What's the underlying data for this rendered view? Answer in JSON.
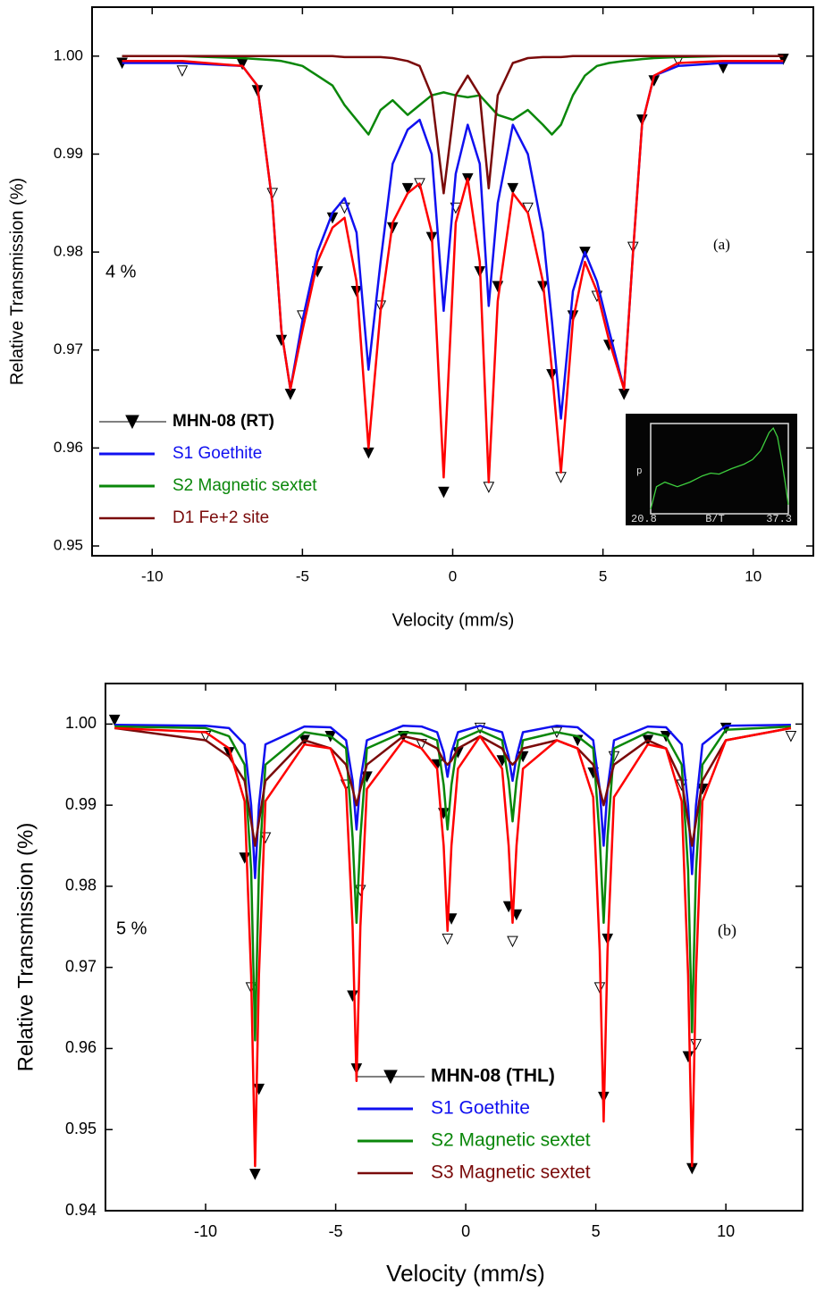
{
  "chart_data": [
    {
      "type": "line",
      "xlabel": "Velocity (mm/s)",
      "ylabel": "Relative Transmission (%)",
      "annotations": [
        "4 %",
        "(a)"
      ],
      "xlim": [
        -12,
        12
      ],
      "ylim": [
        0.949,
        1.005
      ],
      "xticks": [
        -10,
        -5,
        0,
        5,
        10
      ],
      "yticks": [
        0.95,
        0.96,
        0.97,
        0.98,
        0.99,
        {
          "value": 1,
          "label": "1.00"
        }
      ],
      "legend": "lower left",
      "x": [
        -11,
        -9,
        -7,
        -6.5,
        -6,
        -5.7,
        -5.4,
        -5,
        -4.5,
        -4,
        -3.6,
        -3.2,
        -2.8,
        -2.4,
        -2,
        -1.5,
        -1.1,
        -0.7,
        -0.3,
        0.1,
        0.5,
        0.9,
        1.2,
        1.5,
        2,
        2.5,
        3,
        3.3,
        3.6,
        4,
        4.4,
        4.8,
        5.2,
        5.7,
        6,
        6.3,
        6.7,
        7.5,
        9,
        11
      ],
      "series": [
        {
          "name": "MHN-08 (RT)",
          "kind": "scatter",
          "color": "#000000",
          "values": [
            0.9993,
            0.9985,
            0.9992,
            0.9965,
            0.986,
            0.971,
            0.9655,
            0.9735,
            0.978,
            0.9835,
            0.9845,
            0.976,
            0.9595,
            0.9745,
            0.9825,
            0.9865,
            0.987,
            0.9815,
            0.9555,
            0.9845,
            0.9875,
            0.978,
            0.956,
            0.9765,
            0.9865,
            0.9845,
            0.9765,
            0.9675,
            0.957,
            0.9735,
            0.98,
            0.9755,
            0.9705,
            0.9655,
            0.9805,
            0.9935,
            0.9975,
            0.9995,
            0.9988,
            0.9997
          ]
        },
        {
          "name": "S1 Goethite",
          "kind": "line",
          "color": "#1010f0",
          "values": [
            0.9993,
            0.9993,
            0.999,
            0.997,
            0.985,
            0.972,
            0.966,
            0.973,
            0.98,
            0.984,
            0.9855,
            0.982,
            0.968,
            0.979,
            0.989,
            0.9925,
            0.9935,
            0.99,
            0.974,
            0.988,
            0.993,
            0.989,
            0.9745,
            0.985,
            0.993,
            0.99,
            0.982,
            0.973,
            0.963,
            0.976,
            0.98,
            0.977,
            0.972,
            0.966,
            0.98,
            0.993,
            0.998,
            0.999,
            0.9993,
            0.9993
          ]
        },
        {
          "name": "S2 Magnetic sextet",
          "kind": "line",
          "color": "#0a870a",
          "values": [
            1,
            1,
            0.9998,
            0.9997,
            0.9996,
            0.9995,
            0.9993,
            0.999,
            0.998,
            0.997,
            0.995,
            0.9935,
            0.992,
            0.9945,
            0.9955,
            0.994,
            0.995,
            0.996,
            0.9963,
            0.996,
            0.9958,
            0.996,
            0.995,
            0.994,
            0.9935,
            0.9945,
            0.993,
            0.992,
            0.993,
            0.996,
            0.998,
            0.999,
            0.9993,
            0.9995,
            0.9996,
            0.9997,
            0.9998,
            0.9999,
            1,
            1
          ]
        },
        {
          "name": "D1  Fe+2 site",
          "kind": "line",
          "color": "#7a0a0a",
          "values": [
            1,
            1,
            1,
            1,
            1,
            1,
            1,
            1,
            1,
            1,
            0.9999,
            0.9999,
            0.9999,
            0.9999,
            0.9998,
            0.9995,
            0.999,
            0.996,
            0.986,
            0.996,
            0.998,
            0.996,
            0.9865,
            0.996,
            0.9993,
            0.9998,
            0.9999,
            0.9999,
            0.9999,
            1,
            1,
            1,
            1,
            1,
            1,
            1,
            1,
            1,
            1,
            1
          ]
        },
        {
          "kind": "line",
          "color": "#ff0000",
          "values": [
            0.9995,
            0.9995,
            0.999,
            0.997,
            0.985,
            0.972,
            0.966,
            0.972,
            0.979,
            0.9825,
            0.9835,
            0.977,
            0.96,
            0.974,
            0.983,
            0.986,
            0.987,
            0.982,
            0.957,
            0.983,
            0.9875,
            0.979,
            0.9565,
            0.975,
            0.986,
            0.984,
            0.977,
            0.968,
            0.9575,
            0.973,
            0.979,
            0.976,
            0.971,
            0.966,
            0.98,
            0.993,
            0.998,
            0.9993,
            0.9995,
            0.9995
          ]
        }
      ],
      "inset": {
        "xlabel": "B/T",
        "ylabel": "p",
        "xlim": [
          20.8,
          37.3
        ],
        "xticks": [
          20.8,
          37.3
        ],
        "ylim": [
          0,
          1
        ],
        "x": [
          20.8,
          21.5,
          22.5,
          24,
          25.5,
          27,
          28,
          29,
          30.5,
          32,
          33,
          34,
          35,
          35.5,
          36,
          36.5,
          37,
          37.3
        ],
        "values": [
          0.05,
          0.3,
          0.35,
          0.3,
          0.35,
          0.42,
          0.45,
          0.44,
          0.5,
          0.55,
          0.6,
          0.7,
          0.9,
          0.95,
          0.85,
          0.6,
          0.3,
          0.1
        ],
        "color": "#3ecf3e"
      }
    },
    {
      "type": "line",
      "xlabel": "Velocity (mm/s)",
      "ylabel": "Relative Transmission (%)",
      "annotations": [
        "5 %",
        "(b)"
      ],
      "xlim": [
        -13.85,
        12.95
      ],
      "ylim": [
        0.94,
        1.005
      ],
      "xticks": [
        -10,
        -5,
        0,
        5,
        10
      ],
      "yticks": [
        0.94,
        0.95,
        0.96,
        0.97,
        0.98,
        0.99,
        {
          "value": 1,
          "label": "1.00"
        }
      ],
      "legend": "lower center",
      "x": [
        -13.5,
        -10,
        -9.1,
        -8.5,
        -8.25,
        -8.1,
        -7.95,
        -7.7,
        -6.2,
        -5.2,
        -4.6,
        -4.35,
        -4.2,
        -4.05,
        -3.8,
        -2.4,
        -1.7,
        -1.1,
        -0.85,
        -0.7,
        -0.55,
        -0.3,
        0.55,
        1.4,
        1.65,
        1.8,
        1.95,
        2.2,
        3.5,
        4.3,
        4.9,
        5.15,
        5.3,
        5.45,
        5.7,
        7,
        7.7,
        8.3,
        8.55,
        8.7,
        8.85,
        9.1,
        10,
        12.5
      ],
      "series": [
        {
          "name": "MHN-08 (THL)",
          "kind": "scatter",
          "color": "#000000",
          "values": [
            1.0005,
            0.9985,
            0.9965,
            0.9835,
            0.9675,
            0.9445,
            0.955,
            0.986,
            0.998,
            0.9985,
            0.9925,
            0.9665,
            0.9575,
            0.9795,
            0.9935,
            0.9985,
            0.9975,
            0.995,
            0.989,
            0.9735,
            0.976,
            0.9965,
            0.9995,
            0.9955,
            0.9775,
            0.9732,
            0.9765,
            0.996,
            0.999,
            0.998,
            0.994,
            0.9675,
            0.954,
            0.9735,
            0.996,
            0.998,
            0.9985,
            0.9925,
            0.959,
            0.9452,
            0.9605,
            0.992,
            0.9995,
            0.9985
          ]
        },
        {
          "name": "S1 Goethite",
          "kind": "line",
          "color": "#1010f0",
          "values": [
            0.9999,
            0.9998,
            0.9995,
            0.9975,
            0.99,
            0.981,
            0.99,
            0.9975,
            0.9997,
            0.9996,
            0.998,
            0.993,
            0.987,
            0.993,
            0.998,
            0.9998,
            0.9997,
            0.999,
            0.9965,
            0.9935,
            0.9965,
            0.999,
            0.9998,
            0.999,
            0.996,
            0.993,
            0.996,
            0.999,
            0.9998,
            0.9996,
            0.998,
            0.992,
            0.985,
            0.992,
            0.998,
            0.9997,
            0.9996,
            0.9975,
            0.99,
            0.9815,
            0.99,
            0.9975,
            0.9998,
            0.9999
          ]
        },
        {
          "name": "S2 Magnetic sextet",
          "kind": "line",
          "color": "#0a870a",
          "values": [
            0.9997,
            0.9995,
            0.9985,
            0.995,
            0.982,
            0.961,
            0.982,
            0.995,
            0.999,
            0.9985,
            0.997,
            0.986,
            0.9755,
            0.986,
            0.997,
            0.999,
            0.9988,
            0.998,
            0.9925,
            0.987,
            0.9925,
            0.998,
            0.9992,
            0.998,
            0.993,
            0.988,
            0.993,
            0.998,
            0.999,
            0.9985,
            0.997,
            0.986,
            0.9755,
            0.986,
            0.997,
            0.999,
            0.9985,
            0.995,
            0.982,
            0.962,
            0.982,
            0.995,
            0.9993,
            0.9997
          ]
        },
        {
          "name": "S3 Magnetic sextet",
          "kind": "line",
          "color": "#7a0a0a",
          "values": [
            0.9995,
            0.998,
            0.996,
            0.993,
            0.988,
            0.985,
            0.988,
            0.993,
            0.998,
            0.997,
            0.995,
            0.992,
            0.99,
            0.992,
            0.995,
            0.9985,
            0.998,
            0.997,
            0.9955,
            0.995,
            0.9955,
            0.997,
            0.9985,
            0.997,
            0.9955,
            0.995,
            0.9955,
            0.997,
            0.998,
            0.997,
            0.995,
            0.992,
            0.99,
            0.992,
            0.995,
            0.998,
            0.997,
            0.993,
            0.988,
            0.985,
            0.988,
            0.993,
            0.998,
            0.9995
          ]
        },
        {
          "kind": "line",
          "color": "#ff0000",
          "values": [
            0.9995,
            0.999,
            0.997,
            0.9905,
            0.969,
            0.9455,
            0.969,
            0.9905,
            0.9975,
            0.997,
            0.992,
            0.975,
            0.956,
            0.975,
            0.992,
            0.998,
            0.997,
            0.9945,
            0.985,
            0.9745,
            0.985,
            0.9945,
            0.9985,
            0.9945,
            0.985,
            0.9755,
            0.985,
            0.9945,
            0.998,
            0.997,
            0.991,
            0.972,
            0.951,
            0.972,
            0.991,
            0.9975,
            0.997,
            0.9905,
            0.969,
            0.9455,
            0.969,
            0.9905,
            0.998,
            0.9995
          ]
        }
      ]
    }
  ]
}
